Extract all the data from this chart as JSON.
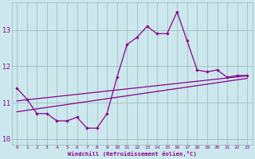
{
  "x": [
    0,
    1,
    2,
    3,
    4,
    5,
    6,
    7,
    8,
    9,
    10,
    11,
    12,
    13,
    14,
    15,
    16,
    17,
    18,
    19,
    20,
    21,
    22,
    23
  ],
  "windchill": [
    11.4,
    11.1,
    10.7,
    10.7,
    10.5,
    10.5,
    10.6,
    10.3,
    10.3,
    10.7,
    11.7,
    12.6,
    12.8,
    13.1,
    12.9,
    12.9,
    13.5,
    12.7,
    11.9,
    11.85,
    11.9,
    11.7,
    11.75,
    11.75
  ],
  "line1": [
    11.05,
    11.08,
    11.11,
    11.14,
    11.17,
    11.2,
    11.23,
    11.26,
    11.29,
    11.32,
    11.35,
    11.38,
    11.41,
    11.44,
    11.47,
    11.5,
    11.53,
    11.56,
    11.59,
    11.62,
    11.65,
    11.68,
    11.71,
    11.74
  ],
  "line2": [
    10.75,
    10.79,
    10.83,
    10.87,
    10.91,
    10.95,
    10.99,
    11.03,
    11.07,
    11.11,
    11.15,
    11.19,
    11.23,
    11.27,
    11.31,
    11.35,
    11.39,
    11.43,
    11.47,
    11.51,
    11.55,
    11.59,
    11.63,
    11.67
  ],
  "color": "#8B008B",
  "bg_color": "#cce8ec",
  "grid_color": "#a0bfc8",
  "xlabel": "Windchill (Refroidissement éolien,°C)",
  "ylim": [
    9.85,
    13.75
  ],
  "xlim": [
    -0.5,
    23.5
  ]
}
